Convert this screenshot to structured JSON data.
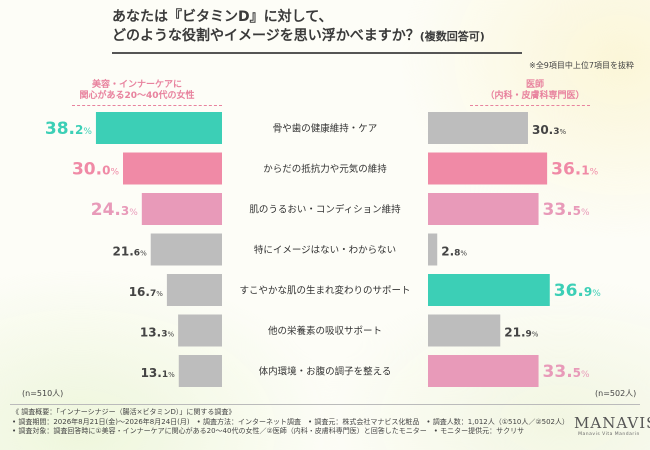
{
  "title": {
    "line1": "あなたは『ビタミンD』に対して、",
    "line2": "どのような役割やイメージを思い浮かべますか？",
    "line2_small": "(複数回答可)"
  },
  "note": "※全9項目中上位7項目を抜粋",
  "left_group_label": [
    "美容・インナーケアに",
    "関心がある20～40代の女性"
  ],
  "right_group_label": [
    "医師",
    "（内科・皮膚科専門医）"
  ],
  "colors": {
    "teal": "#3ccfb6",
    "pink": "#f08aa6",
    "lightpink": "#e89ab9",
    "gray": "#bdbdbd",
    "label_pink": "#e8829e"
  },
  "chart_data": {
    "type": "bar",
    "categories": [
      "骨や歯の健康維持・ケア",
      "からだの抵抗力や元気の維持",
      "肌のうるおい・コンディション維持",
      "特にイメージはない・わからない",
      "すこやかな肌の生まれ変わりのサポート",
      "他の栄養素の吸収サポート",
      "体内環境・お腹の調子を整える"
    ],
    "series": [
      {
        "name": "美容・インナーケアに関心がある20～40代の女性",
        "values": [
          38.2,
          30.0,
          24.3,
          21.6,
          16.7,
          13.3,
          13.1
        ],
        "colors": [
          "teal",
          "pink",
          "lightpink",
          "gray",
          "gray",
          "gray",
          "gray"
        ],
        "labels": [
          "38.2",
          "30.0",
          "24.3",
          "21.6",
          "16.7",
          "13.3",
          "13.1"
        ]
      },
      {
        "name": "医師（内科・皮膚科専門医）",
        "values": [
          30.3,
          36.1,
          33.5,
          2.8,
          36.9,
          21.9,
          33.5
        ],
        "colors": [
          "gray",
          "pink",
          "lightpink",
          "gray",
          "teal",
          "gray",
          "lightpink"
        ],
        "labels": [
          "30.3",
          "36.1",
          "33.5",
          "2.8",
          "36.9",
          "21.9",
          "33.5"
        ]
      }
    ],
    "unit": "%",
    "xlim": [
      0,
      40
    ]
  },
  "n_left": "(n=510人)",
  "n_right": "(n=502人)",
  "footer": [
    "《 調査概要：「インナーシナジー（腸活×ビタミンD）」に関する調査》",
    "• 調査期間：2026年8月21日(金)～2026年8月24日(月)　• 調査方法：インターネット調査　• 調査元：株式会社マナビス化粧品　• 調査人数：1,012人（①510人／②502人）",
    "• 調査対象：調査回答時に①美容・インナーケアに関心がある20～40代の女性／②医師（内科・皮膚科専門医）と回答したモニター　• モニター提供元：サクリサ"
  ],
  "logo": {
    "name": "MANAVIS",
    "sub": "Manavis Vita Mandarin"
  }
}
